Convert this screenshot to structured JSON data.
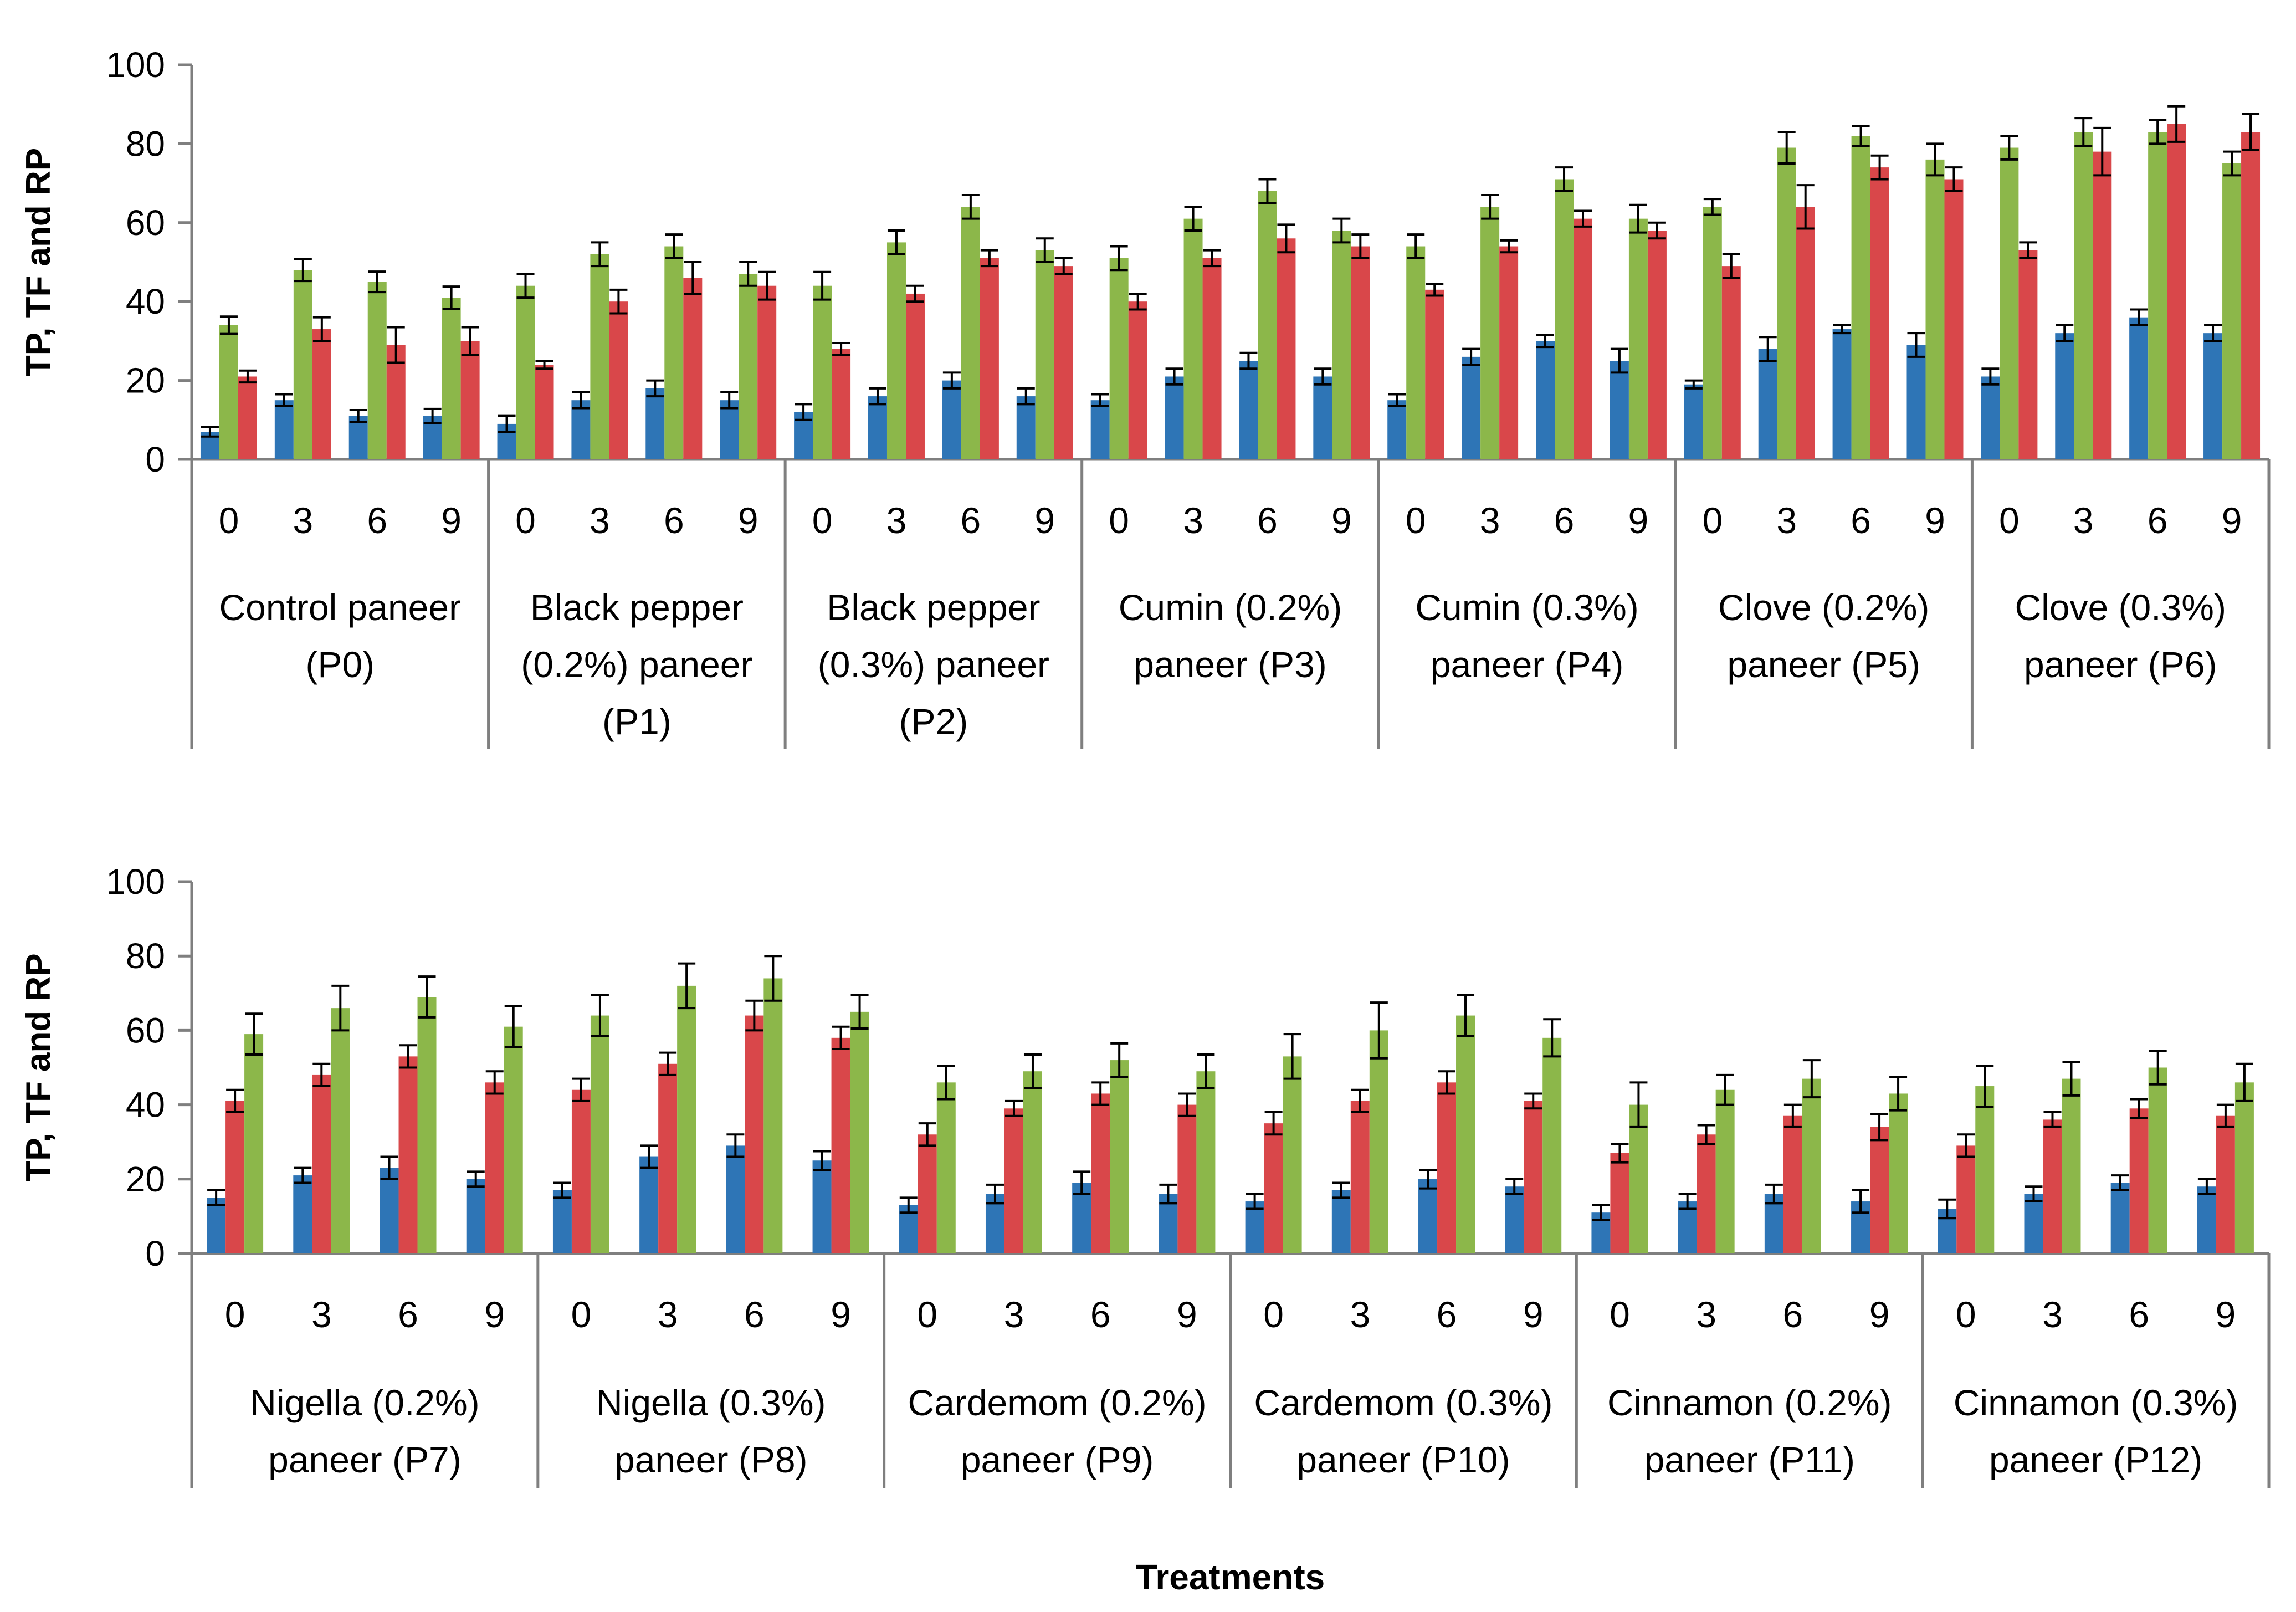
{
  "chart_data": [
    {
      "type": "bar",
      "ylabel": "TP, TF and RP",
      "ylim": [
        0,
        100
      ],
      "yticks": [
        0,
        20,
        40,
        60,
        80,
        100
      ],
      "grid": false,
      "legend": "none",
      "series_order": [
        "blue",
        "green",
        "red"
      ],
      "colors": {
        "blue": "#2E75B6",
        "green": "#8CB74A",
        "red": "#D9474A"
      },
      "groups": [
        {
          "label": "Control paneer (P0)",
          "lines": [
            "Control paneer",
            "(P0)"
          ],
          "periods": [
            "0",
            "3",
            "6",
            "9"
          ],
          "blue": [
            7,
            15,
            11,
            11
          ],
          "green": [
            34,
            48,
            45,
            41
          ],
          "red": [
            21,
            33,
            29,
            30
          ],
          "blue_err": [
            1.2,
            1.5,
            1.5,
            1.8
          ],
          "green_err": [
            2.2,
            2.8,
            2.6,
            2.8
          ],
          "red_err": [
            1.5,
            3,
            4.5,
            3.5
          ]
        },
        {
          "label": "Black pepper (0.2%) paneer (P1)",
          "lines": [
            "Black pepper",
            "(0.2%) paneer",
            "(P1)"
          ],
          "periods": [
            "0",
            "3",
            "6",
            "9"
          ],
          "blue": [
            9,
            15,
            18,
            15
          ],
          "green": [
            44,
            52,
            54,
            47
          ],
          "red": [
            24,
            40,
            46,
            44
          ],
          "blue_err": [
            2,
            2,
            2,
            2
          ],
          "green_err": [
            3,
            3,
            3,
            3
          ],
          "red_err": [
            1,
            3,
            4,
            3.5
          ]
        },
        {
          "label": "Black pepper (0.3%) paneer (P2)",
          "lines": [
            "Black pepper",
            "(0.3%) paneer",
            "(P2)"
          ],
          "periods": [
            "0",
            "3",
            "6",
            "9"
          ],
          "blue": [
            12,
            16,
            20,
            16
          ],
          "green": [
            44,
            55,
            64,
            53
          ],
          "red": [
            28,
            42,
            51,
            49
          ],
          "blue_err": [
            2,
            2,
            2,
            2
          ],
          "green_err": [
            3.5,
            3,
            3,
            3
          ],
          "red_err": [
            1.5,
            2,
            2,
            2
          ]
        },
        {
          "label": "Cumin (0.2%) paneer (P3)",
          "lines": [
            "Cumin (0.2%)",
            "paneer (P3)"
          ],
          "periods": [
            "0",
            "3",
            "6",
            "9"
          ],
          "blue": [
            15,
            21,
            25,
            21
          ],
          "green": [
            51,
            61,
            68,
            58
          ],
          "red": [
            40,
            51,
            56,
            54
          ],
          "blue_err": [
            1.5,
            2,
            2,
            2
          ],
          "green_err": [
            3,
            3,
            3,
            3
          ],
          "red_err": [
            2,
            2,
            3.5,
            3
          ]
        },
        {
          "label": "Cumin (0.3%) paneer (P4)",
          "lines": [
            "Cumin (0.3%)",
            "paneer (P4)"
          ],
          "periods": [
            "0",
            "3",
            "6",
            "9"
          ],
          "blue": [
            15,
            26,
            30,
            25
          ],
          "green": [
            54,
            64,
            71,
            61
          ],
          "red": [
            43,
            54,
            61,
            58
          ],
          "blue_err": [
            1.5,
            2,
            1.5,
            3
          ],
          "green_err": [
            3,
            3,
            3,
            3.5
          ],
          "red_err": [
            1.5,
            1.5,
            2,
            2
          ]
        },
        {
          "label": "Clove (0.2%) paneer (P5)",
          "lines": [
            "Clove (0.2%)",
            "paneer (P5)"
          ],
          "periods": [
            "0",
            "3",
            "6",
            "9"
          ],
          "blue": [
            19,
            28,
            33,
            29
          ],
          "green": [
            64,
            79,
            82,
            76
          ],
          "red": [
            49,
            64,
            74,
            71
          ],
          "blue_err": [
            1,
            3,
            1,
            3
          ],
          "green_err": [
            2,
            4,
            2.5,
            4
          ],
          "red_err": [
            3,
            5.5,
            3,
            3
          ]
        },
        {
          "label": "Clove (0.3%) paneer (P6)",
          "lines": [
            "Clove (0.3%)",
            "paneer (P6)"
          ],
          "periods": [
            "0",
            "3",
            "6",
            "9"
          ],
          "blue": [
            21,
            32,
            36,
            32
          ],
          "green": [
            79,
            83,
            83,
            75
          ],
          "red": [
            53,
            78,
            85,
            83
          ],
          "blue_err": [
            2,
            2,
            2,
            2
          ],
          "green_err": [
            3,
            3.5,
            3,
            3
          ],
          "red_err": [
            2,
            6,
            4.5,
            4.5
          ]
        }
      ]
    },
    {
      "type": "bar",
      "ylabel": "TP, TF  and RP",
      "xlabel": "Treatments",
      "ylim": [
        0,
        100
      ],
      "yticks": [
        0,
        20,
        40,
        60,
        80,
        100
      ],
      "grid": false,
      "legend": "none",
      "series_order": [
        "blue",
        "red",
        "green"
      ],
      "colors": {
        "blue": "#2E75B6",
        "green": "#8CB74A",
        "red": "#D9474A"
      },
      "groups": [
        {
          "label": "Nigella (0.2%) paneer (P7)",
          "lines": [
            "Nigella (0.2%)",
            "paneer (P7)"
          ],
          "periods": [
            "0",
            "3",
            "6",
            "9"
          ],
          "blue": [
            15,
            21,
            23,
            20
          ],
          "red": [
            41,
            48,
            53,
            46
          ],
          "green": [
            59,
            66,
            69,
            61
          ],
          "blue_err": [
            2,
            2,
            3,
            2
          ],
          "red_err": [
            3,
            3,
            3,
            3
          ],
          "green_err": [
            5.5,
            6,
            5.5,
            5.5
          ]
        },
        {
          "label": "Nigella (0.3%) paneer (P8)",
          "lines": [
            "Nigella (0.3%)",
            "paneer (P8)"
          ],
          "periods": [
            "0",
            "3",
            "6",
            "9"
          ],
          "blue": [
            17,
            26,
            29,
            25
          ],
          "red": [
            44,
            51,
            64,
            58
          ],
          "green": [
            64,
            72,
            74,
            65
          ],
          "blue_err": [
            2,
            3,
            3,
            2.5
          ],
          "red_err": [
            3,
            3,
            4,
            3
          ],
          "green_err": [
            5.5,
            6,
            6,
            4.5
          ]
        },
        {
          "label": "Cardemom (0.2%) paneer (P9)",
          "lines": [
            "Cardemom (0.2%)",
            "paneer (P9)"
          ],
          "periods": [
            "0",
            "3",
            "6",
            "9"
          ],
          "blue": [
            13,
            16,
            19,
            16
          ],
          "red": [
            32,
            39,
            43,
            40
          ],
          "green": [
            46,
            49,
            52,
            49
          ],
          "blue_err": [
            2,
            2.5,
            3,
            2.5
          ],
          "red_err": [
            3,
            2,
            3,
            3
          ],
          "green_err": [
            4.5,
            4.5,
            4.5,
            4.5
          ]
        },
        {
          "label": "Cardemom (0.3%) paneer (P10)",
          "lines": [
            "Cardemom (0.3%)",
            "paneer (P10)"
          ],
          "periods": [
            "0",
            "3",
            "6",
            "9"
          ],
          "blue": [
            14,
            17,
            20,
            18
          ],
          "red": [
            35,
            41,
            46,
            41
          ],
          "green": [
            53,
            60,
            64,
            58
          ],
          "blue_err": [
            2,
            2,
            2.5,
            2
          ],
          "red_err": [
            3,
            3,
            3,
            2
          ],
          "green_err": [
            6,
            7.5,
            5.5,
            5
          ]
        },
        {
          "label": "Cinnamon (0.2%) paneer (P11)",
          "lines": [
            "Cinnamon (0.2%)",
            "paneer (P11)"
          ],
          "periods": [
            "0",
            "3",
            "6",
            "9"
          ],
          "blue": [
            11,
            14,
            16,
            14
          ],
          "red": [
            27,
            32,
            37,
            34
          ],
          "green": [
            40,
            44,
            47,
            43
          ],
          "blue_err": [
            2,
            2,
            2.5,
            3
          ],
          "red_err": [
            2.5,
            2.5,
            3,
            3.5
          ],
          "green_err": [
            6,
            4,
            5,
            4.5
          ]
        },
        {
          "label": "Cinnamon (0.3%) paneer (P12)",
          "lines": [
            "Cinnamon (0.3%)",
            "paneer (P12)"
          ],
          "periods": [
            "0",
            "3",
            "6",
            "9"
          ],
          "blue": [
            12,
            16,
            19,
            18
          ],
          "red": [
            29,
            36,
            39,
            37
          ],
          "green": [
            45,
            47,
            50,
            46
          ],
          "blue_err": [
            2.5,
            2,
            2,
            2
          ],
          "red_err": [
            3,
            2,
            2.5,
            3
          ],
          "green_err": [
            5.5,
            4.5,
            4.5,
            5
          ]
        }
      ]
    }
  ]
}
